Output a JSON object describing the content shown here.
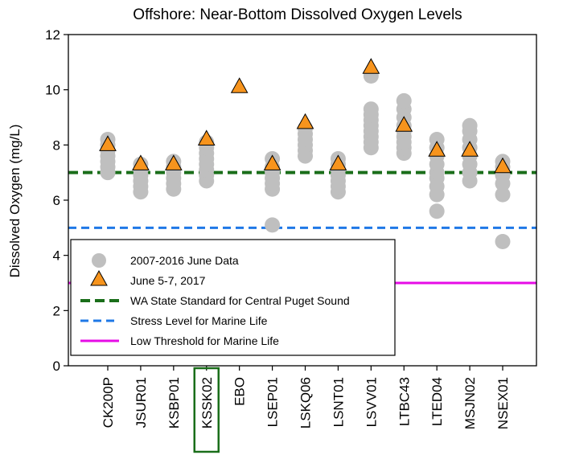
{
  "chart_data": {
    "type": "scatter",
    "title": "Offshore: Near-Bottom Dissolved Oxygen Levels",
    "xlabel": "",
    "ylabel": "Dissolved Oxygen (mg/L)",
    "ylim": [
      0,
      12
    ],
    "yticks": [
      0,
      2,
      4,
      6,
      8,
      10,
      12
    ],
    "grid": false,
    "legend_position": "bottom-left",
    "categories": [
      "CK200P",
      "JSUR01",
      "KSBP01",
      "KSSK02",
      "EBO",
      "LSEP01",
      "LSKQ06",
      "LSNT01",
      "LSVV01",
      "LTBC43",
      "LTED04",
      "MSJN02",
      "NSEX01"
    ],
    "highlighted_category": "KSSK02",
    "series": [
      {
        "name": "2007-2016 June Data",
        "marker": "circle",
        "color": "#bfbfbf",
        "values": [
          [
            7.0,
            7.2,
            7.4,
            7.6,
            7.8,
            8.0,
            8.2
          ],
          [
            6.3,
            6.5,
            6.7,
            6.9,
            7.1,
            7.3
          ],
          [
            6.4,
            6.6,
            6.8,
            7.0,
            7.2,
            7.4
          ],
          [
            6.7,
            6.9,
            7.1,
            7.3,
            7.5,
            7.7,
            7.9,
            8.1
          ],
          [],
          [
            5.1,
            6.4,
            6.6,
            6.8,
            7.0,
            7.2,
            7.5
          ],
          [
            7.6,
            7.8,
            8.0,
            8.2,
            8.4,
            8.6
          ],
          [
            6.3,
            6.5,
            6.7,
            6.9,
            7.1,
            7.3,
            7.5
          ],
          [
            7.9,
            8.1,
            8.3,
            8.5,
            8.7,
            8.9,
            9.1,
            9.3,
            10.5
          ],
          [
            7.7,
            7.9,
            8.1,
            8.3,
            8.5,
            8.7,
            9.0,
            9.3,
            9.6
          ],
          [
            5.6,
            6.2,
            6.5,
            6.8,
            7.0,
            7.3,
            7.6,
            7.9,
            8.2
          ],
          [
            6.7,
            7.0,
            7.3,
            7.6,
            7.9,
            8.2,
            8.5,
            8.7
          ],
          [
            4.5,
            6.2,
            6.6,
            6.9,
            7.2,
            7.4
          ]
        ]
      },
      {
        "name": "June 5-7, 2017",
        "marker": "triangle",
        "color": "#f7941d",
        "values": [
          8.0,
          7.3,
          7.3,
          8.2,
          10.1,
          7.3,
          8.8,
          7.3,
          10.8,
          8.7,
          7.8,
          7.8,
          7.2
        ]
      }
    ],
    "reference_lines": [
      {
        "name": "WA State Standard for Central Puget Sound",
        "value": 7,
        "color": "#1a6e1a",
        "style": "dashed"
      },
      {
        "name": "Stress Level for Marine Life",
        "value": 5,
        "color": "#1f78e6",
        "style": "dashed"
      },
      {
        "name": "Low Threshold for Marine Life",
        "value": 3,
        "color": "#e60ce6",
        "style": "solid"
      }
    ]
  }
}
